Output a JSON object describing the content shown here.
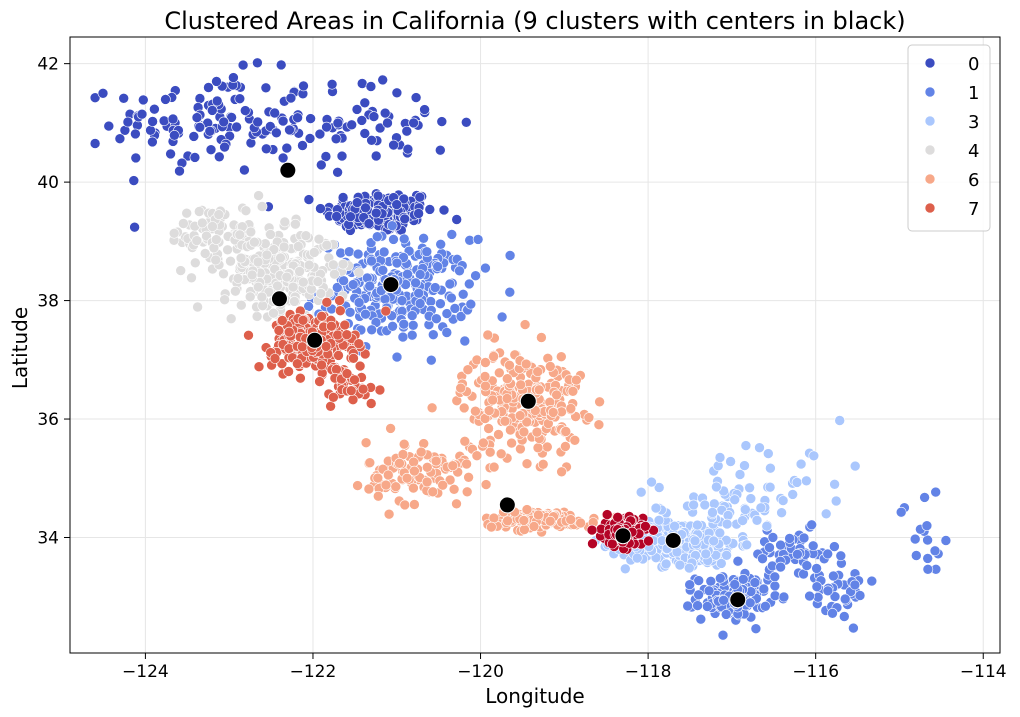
{
  "chart_data": {
    "type": "scatter",
    "title": "Clustered Areas in California (9 clusters with centers in black)",
    "xlabel": "Longitude",
    "ylabel": "Latitude",
    "xlim": [
      -124.9,
      -113.8
    ],
    "ylim": [
      32.05,
      42.45
    ],
    "xticks": [
      -124,
      -122,
      -120,
      -118,
      -116,
      -114
    ],
    "xtick_labels": [
      "−124",
      "−122",
      "−120",
      "−118",
      "−116",
      "−114"
    ],
    "yticks": [
      34,
      36,
      38,
      40,
      42
    ],
    "ytick_labels": [
      "34",
      "36",
      "38",
      "40",
      "42"
    ],
    "grid": true,
    "legend_position": "top-right",
    "legend_entries": [
      "0",
      "1",
      "3",
      "4",
      "6",
      "7"
    ],
    "series": [
      {
        "name": "0",
        "color": "#3b4cc0",
        "regions": [
          {
            "center": [
              -121.2,
              39.5
            ],
            "spread": [
              0.55,
              0.3
            ],
            "count": 160
          },
          {
            "center": [
              -123.2,
              41.0
            ],
            "spread": [
              1.0,
              0.7
            ],
            "count": 120
          },
          {
            "center": [
              -121.3,
              41.0
            ],
            "spread": [
              0.9,
              0.6
            ],
            "count": 60
          }
        ]
      },
      {
        "name": "1",
        "color": "#6283e6",
        "regions": [
          {
            "center": [
              -121.0,
              38.2
            ],
            "spread": [
              0.75,
              0.7
            ],
            "count": 260
          },
          {
            "center": [
              -117.0,
              33.0
            ],
            "spread": [
              0.35,
              0.3
            ],
            "count": 150
          },
          {
            "center": [
              -116.3,
              33.7
            ],
            "spread": [
              0.45,
              0.35
            ],
            "count": 60
          },
          {
            "center": [
              -115.8,
              33.1
            ],
            "spread": [
              0.45,
              0.4
            ],
            "count": 40
          },
          {
            "center": [
              -114.7,
              34.0
            ],
            "spread": [
              0.25,
              0.7
            ],
            "count": 16
          }
        ]
      },
      {
        "name": "3",
        "color": "#aac7fd",
        "regions": [
          {
            "center": [
              -117.6,
              33.9
            ],
            "spread": [
              0.55,
              0.3
            ],
            "count": 340
          },
          {
            "center": [
              -117.1,
              34.5
            ],
            "spread": [
              0.7,
              0.45
            ],
            "count": 70
          },
          {
            "center": [
              -116.3,
              35.2
            ],
            "spread": [
              0.9,
              0.5
            ],
            "count": 22
          }
        ]
      },
      {
        "name": "4",
        "color": "#dddcdc",
        "regions": [
          {
            "center": [
              -122.4,
              38.5
            ],
            "spread": [
              0.55,
              0.55
            ],
            "count": 260
          },
          {
            "center": [
              -123.1,
              39.1
            ],
            "spread": [
              0.5,
              0.45
            ],
            "count": 80
          }
        ]
      },
      {
        "name": "6",
        "color": "#f7a889",
        "regions": [
          {
            "center": [
              -119.5,
              36.3
            ],
            "spread": [
              0.6,
              0.75
            ],
            "count": 240
          },
          {
            "center": [
              -120.7,
              35.1
            ],
            "spread": [
              0.55,
              0.45
            ],
            "count": 110
          },
          {
            "center": [
              -119.3,
              34.3
            ],
            "spread": [
              0.55,
              0.12
            ],
            "count": 140
          }
        ]
      },
      {
        "name": "7",
        "color": "#dd5f4b",
        "regions": [
          {
            "center": [
              -122.0,
              37.3
            ],
            "spread": [
              0.4,
              0.4
            ],
            "count": 240
          },
          {
            "center": [
              -121.6,
              36.6
            ],
            "spread": [
              0.45,
              0.35
            ],
            "count": 40
          }
        ]
      },
      {
        "name": "",
        "color": "#b40426",
        "regions": [
          {
            "center": [
              -118.3,
              34.1
            ],
            "spread": [
              0.2,
              0.2
            ],
            "count": 140
          }
        ]
      }
    ],
    "centers": [
      {
        "x": -122.3,
        "y": 40.2
      },
      {
        "x": -121.07,
        "y": 38.27
      },
      {
        "x": -122.4,
        "y": 38.03
      },
      {
        "x": -121.98,
        "y": 37.33
      },
      {
        "x": -119.43,
        "y": 36.3
      },
      {
        "x": -119.68,
        "y": 34.55
      },
      {
        "x": -118.3,
        "y": 34.03
      },
      {
        "x": -117.7,
        "y": 33.95
      },
      {
        "x": -116.93,
        "y": 32.95
      }
    ],
    "center_color": "#000000"
  }
}
